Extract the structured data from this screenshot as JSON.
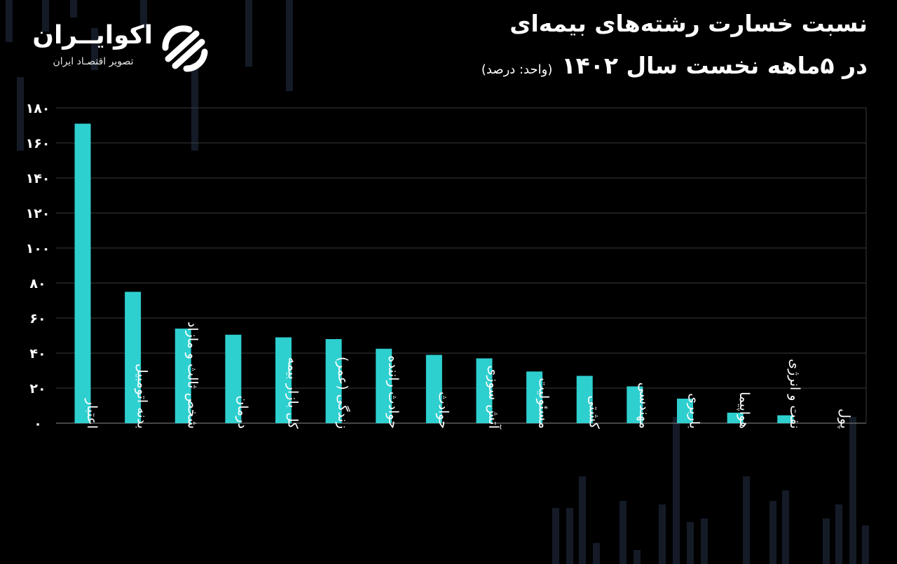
{
  "header": {
    "title": "نسبت خسارت رشته‌های بیمه‌ای",
    "subtitle": "در ۵ماهه نخست سال ۱۴۰۲",
    "unit": "(واحد: درصد)"
  },
  "logo": {
    "name": "اکوایــران",
    "tagline": "تصویر اقتصـاد ایران"
  },
  "colors": {
    "bar": "#2ECFCF",
    "background": "#000000",
    "grid": "#3a3a3a",
    "text": "#ffffff"
  },
  "chart_data": {
    "type": "bar",
    "title": "نسبت خسارت رشته‌های بیمه‌ای در ۵ماهه نخست سال ۱۴۰۲",
    "xlabel": "",
    "ylabel": "",
    "ylim": [
      0,
      180
    ],
    "yticks": [
      0,
      20,
      40,
      60,
      80,
      100,
      120,
      140,
      160,
      180
    ],
    "ytick_labels": [
      "۰",
      "۲۰",
      "۴۰",
      "۶۰",
      "۸۰",
      "۱۰۰",
      "۱۲۰",
      "۱۴۰",
      "۱۶۰",
      "۱۸۰"
    ],
    "grid": true,
    "categories": [
      "اعتبار",
      "بدنه اتومبیل",
      "شخص ثالث و مازاد",
      "درمان",
      "کل بازار بیمه",
      "زندگی (عمر)",
      "حوادث راننده",
      "حوادث",
      "آتش سوزی",
      "مسئولیت",
      "کشتی",
      "مهندسی",
      "باربری",
      "هواپیما",
      "نفت و انرژی",
      "پول"
    ],
    "values": [
      171,
      75,
      54,
      50.5,
      49,
      48,
      42.5,
      39,
      37,
      29.5,
      27,
      21,
      14,
      6,
      4.5,
      0
    ]
  }
}
